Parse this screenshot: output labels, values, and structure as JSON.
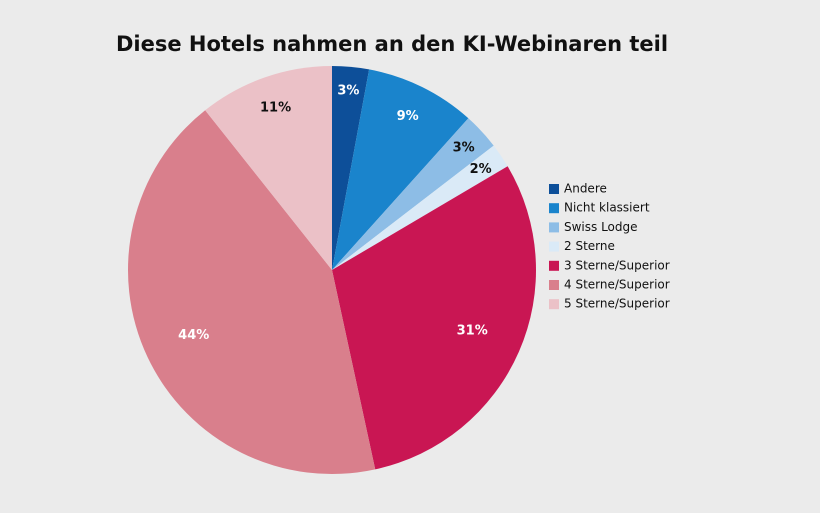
{
  "chart_data": {
    "type": "pie",
    "title": "Diese Hotels nahmen an den KI-Webinaren teil",
    "categories": [
      "Andere",
      "Nicht klassiert",
      "Swiss Lodge",
      "2 Sterne",
      "3 Sterne/Superior",
      "4 Sterne/Superior",
      "5 Sterne/Superior"
    ],
    "values": [
      3,
      9,
      3,
      2,
      31,
      44,
      11
    ],
    "value_labels": [
      "3%",
      "9%",
      "3%",
      "2%",
      "31%",
      "44%",
      "11%"
    ],
    "colors": [
      "#0d4f99",
      "#1a84cc",
      "#8dbde6",
      "#daeaf7",
      "#c91653",
      "#d97f8c",
      "#ebc1c7"
    ],
    "legend": "right"
  }
}
